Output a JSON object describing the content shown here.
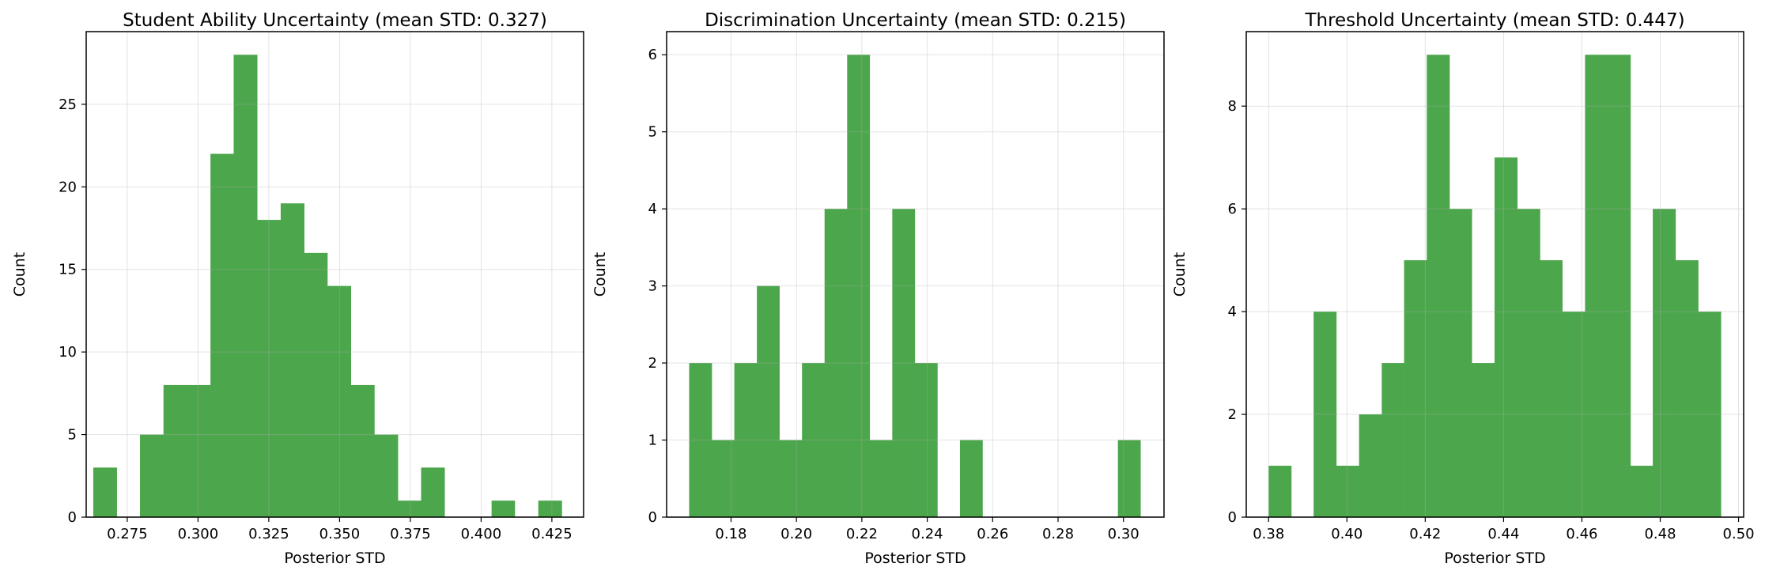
{
  "chart_data": [
    {
      "type": "bar",
      "title": "Student Ability Uncertainty (mean STD: 0.327)",
      "xlabel": "Posterior STD",
      "ylabel": "Count",
      "xlim": [
        0.2605,
        0.4362
      ],
      "ylim": [
        0,
        29.4
      ],
      "xticks": [
        0.275,
        0.3,
        0.325,
        0.35,
        0.375,
        0.4,
        0.425
      ],
      "xtick_labels": [
        "0.275",
        "0.300",
        "0.325",
        "0.350",
        "0.375",
        "0.400",
        "0.425"
      ],
      "yticks": [
        0,
        5,
        10,
        15,
        20,
        25
      ],
      "ytick_labels": [
        "0",
        "5",
        "10",
        "15",
        "20",
        "25"
      ],
      "grid": true,
      "color": "#4ca64c",
      "bin_edges": [
        0.263,
        0.2713,
        0.2795,
        0.2878,
        0.2961,
        0.3044,
        0.3126,
        0.3209,
        0.3292,
        0.3375,
        0.3457,
        0.354,
        0.3623,
        0.3706,
        0.3788,
        0.3871,
        0.3954,
        0.4037,
        0.4119,
        0.4202,
        0.4285
      ],
      "values": [
        3,
        0,
        5,
        8,
        8,
        22,
        28,
        18,
        19,
        16,
        14,
        8,
        5,
        1,
        3,
        0,
        0,
        1,
        0,
        1
      ]
    },
    {
      "type": "bar",
      "title": "Discrimination Uncertainty (mean STD: 0.215)",
      "xlabel": "Posterior STD",
      "ylabel": "Count",
      "xlim": [
        0.1603,
        0.3124
      ],
      "ylim": [
        0,
        6.3
      ],
      "xticks": [
        0.18,
        0.2,
        0.22,
        0.24,
        0.26,
        0.28,
        0.3
      ],
      "xtick_labels": [
        "0.18",
        "0.20",
        "0.22",
        "0.24",
        "0.26",
        "0.28",
        "0.30"
      ],
      "yticks": [
        0,
        1,
        2,
        3,
        4,
        5,
        6
      ],
      "ytick_labels": [
        "0",
        "1",
        "2",
        "3",
        "4",
        "5",
        "6"
      ],
      "grid": true,
      "color": "#4ca64c",
      "bin_edges": [
        0.1672,
        0.1741,
        0.181,
        0.1879,
        0.1948,
        0.2017,
        0.2086,
        0.2155,
        0.2224,
        0.2293,
        0.2362,
        0.2431,
        0.25,
        0.2569,
        0.2638,
        0.2707,
        0.2776,
        0.2845,
        0.2914,
        0.2983,
        0.3052
      ],
      "values": [
        2,
        1,
        2,
        3,
        1,
        2,
        4,
        6,
        1,
        4,
        2,
        0,
        1,
        0,
        0,
        0,
        0,
        0,
        0,
        1
      ]
    },
    {
      "type": "bar",
      "title": "Threshold Uncertainty (mean STD: 0.447)",
      "xlabel": "Posterior STD",
      "ylabel": "Count",
      "xlim": [
        0.3743,
        0.5013
      ],
      "ylim": [
        0,
        9.45
      ],
      "xticks": [
        0.38,
        0.4,
        0.42,
        0.44,
        0.46,
        0.48,
        0.5
      ],
      "xtick_labels": [
        "0.38",
        "0.40",
        "0.42",
        "0.44",
        "0.46",
        "0.48",
        "0.50"
      ],
      "yticks": [
        0,
        2,
        4,
        6,
        8
      ],
      "ytick_labels": [
        "0",
        "2",
        "4",
        "6",
        "8"
      ],
      "grid": true,
      "color": "#4ca64c",
      "bin_edges": [
        0.38,
        0.3858,
        0.3915,
        0.3973,
        0.4031,
        0.4089,
        0.4146,
        0.4204,
        0.4262,
        0.4319,
        0.4377,
        0.4435,
        0.4493,
        0.455,
        0.4608,
        0.4666,
        0.4724,
        0.4781,
        0.4839,
        0.4897,
        0.4955
      ],
      "values": [
        1,
        0,
        4,
        1,
        2,
        3,
        5,
        9,
        6,
        3,
        7,
        6,
        5,
        4,
        9,
        9,
        1,
        6,
        5,
        4
      ]
    }
  ]
}
